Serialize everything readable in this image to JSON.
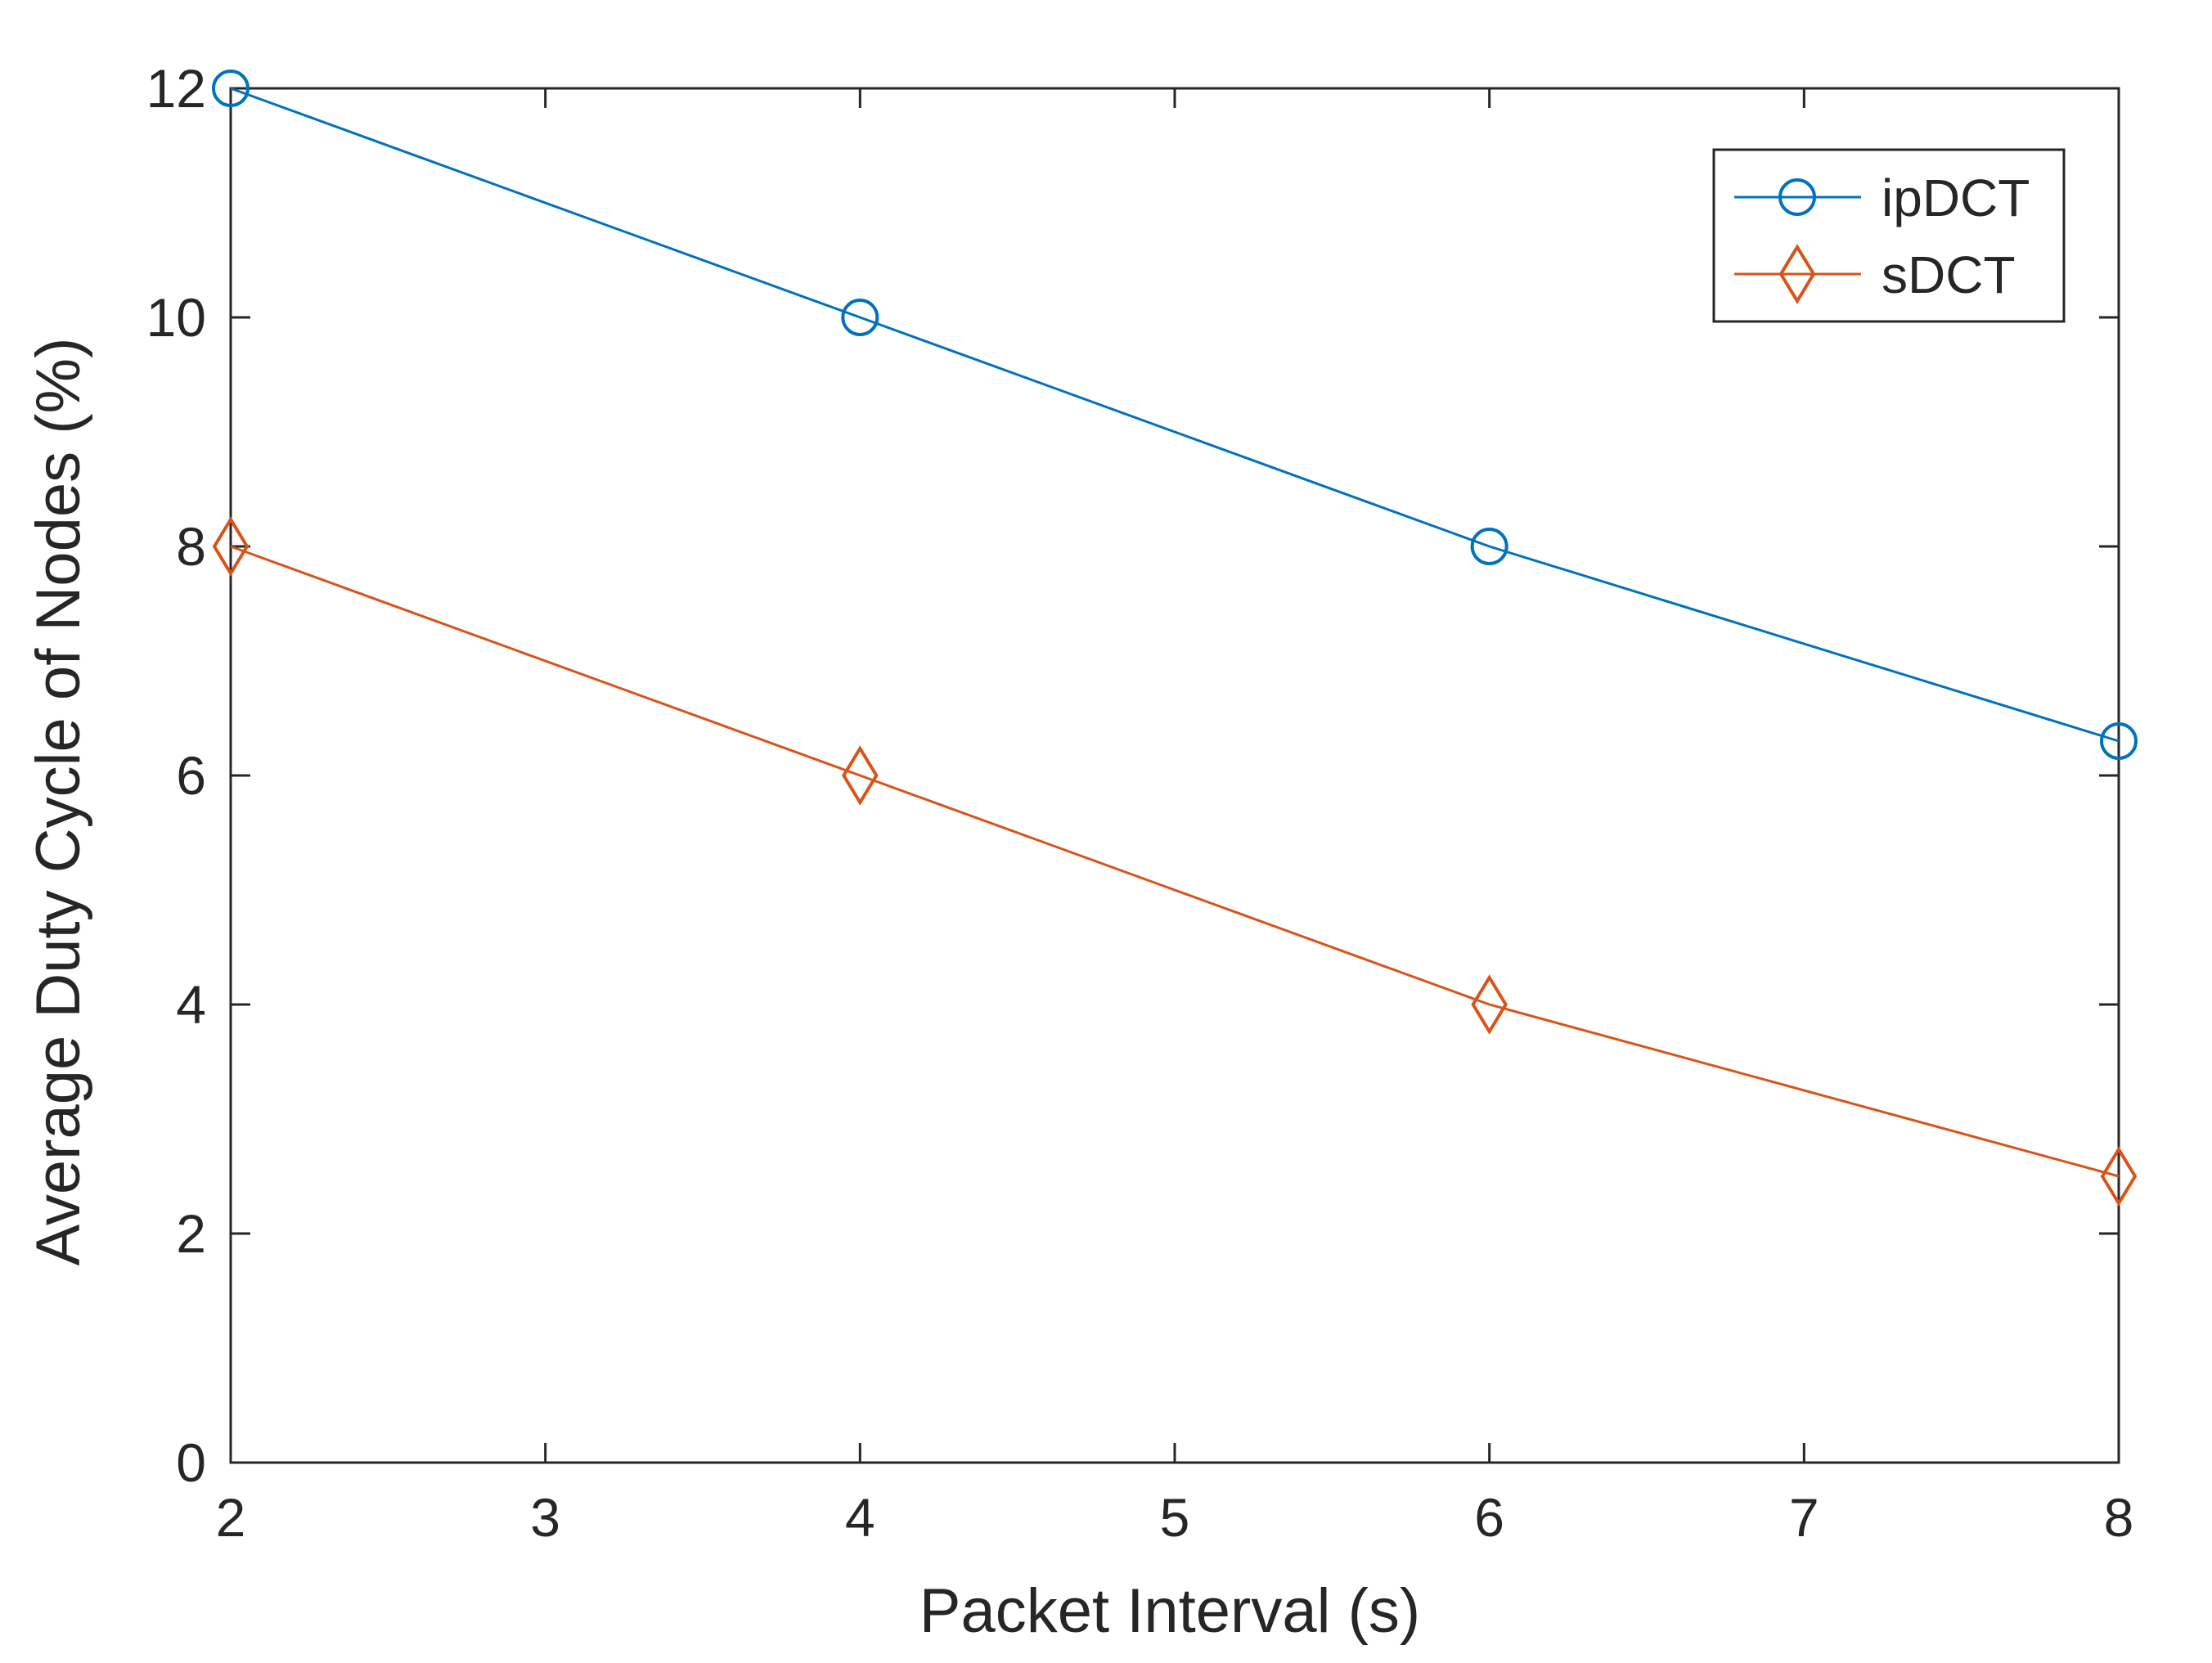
{
  "chart_data": {
    "type": "line",
    "title": "",
    "xlabel": "Packet Interval (s)",
    "ylabel": "Average Duty Cycle of Nodes (%)",
    "xlim": [
      2,
      8
    ],
    "ylim": [
      0,
      12
    ],
    "xticks": [
      2,
      3,
      4,
      5,
      6,
      7,
      8
    ],
    "yticks": [
      0,
      2,
      4,
      6,
      8,
      10,
      12
    ],
    "x": [
      2,
      4,
      6,
      8
    ],
    "series": [
      {
        "name": "ipDCT",
        "values": [
          12,
          10,
          8,
          6.3
        ],
        "color": "#0072BD",
        "marker": "circle"
      },
      {
        "name": "sDCT",
        "values": [
          8,
          6,
          4,
          2.5
        ],
        "color": "#D95319",
        "marker": "diamond"
      }
    ],
    "legend_position": "top-right",
    "grid": false,
    "box": true
  }
}
